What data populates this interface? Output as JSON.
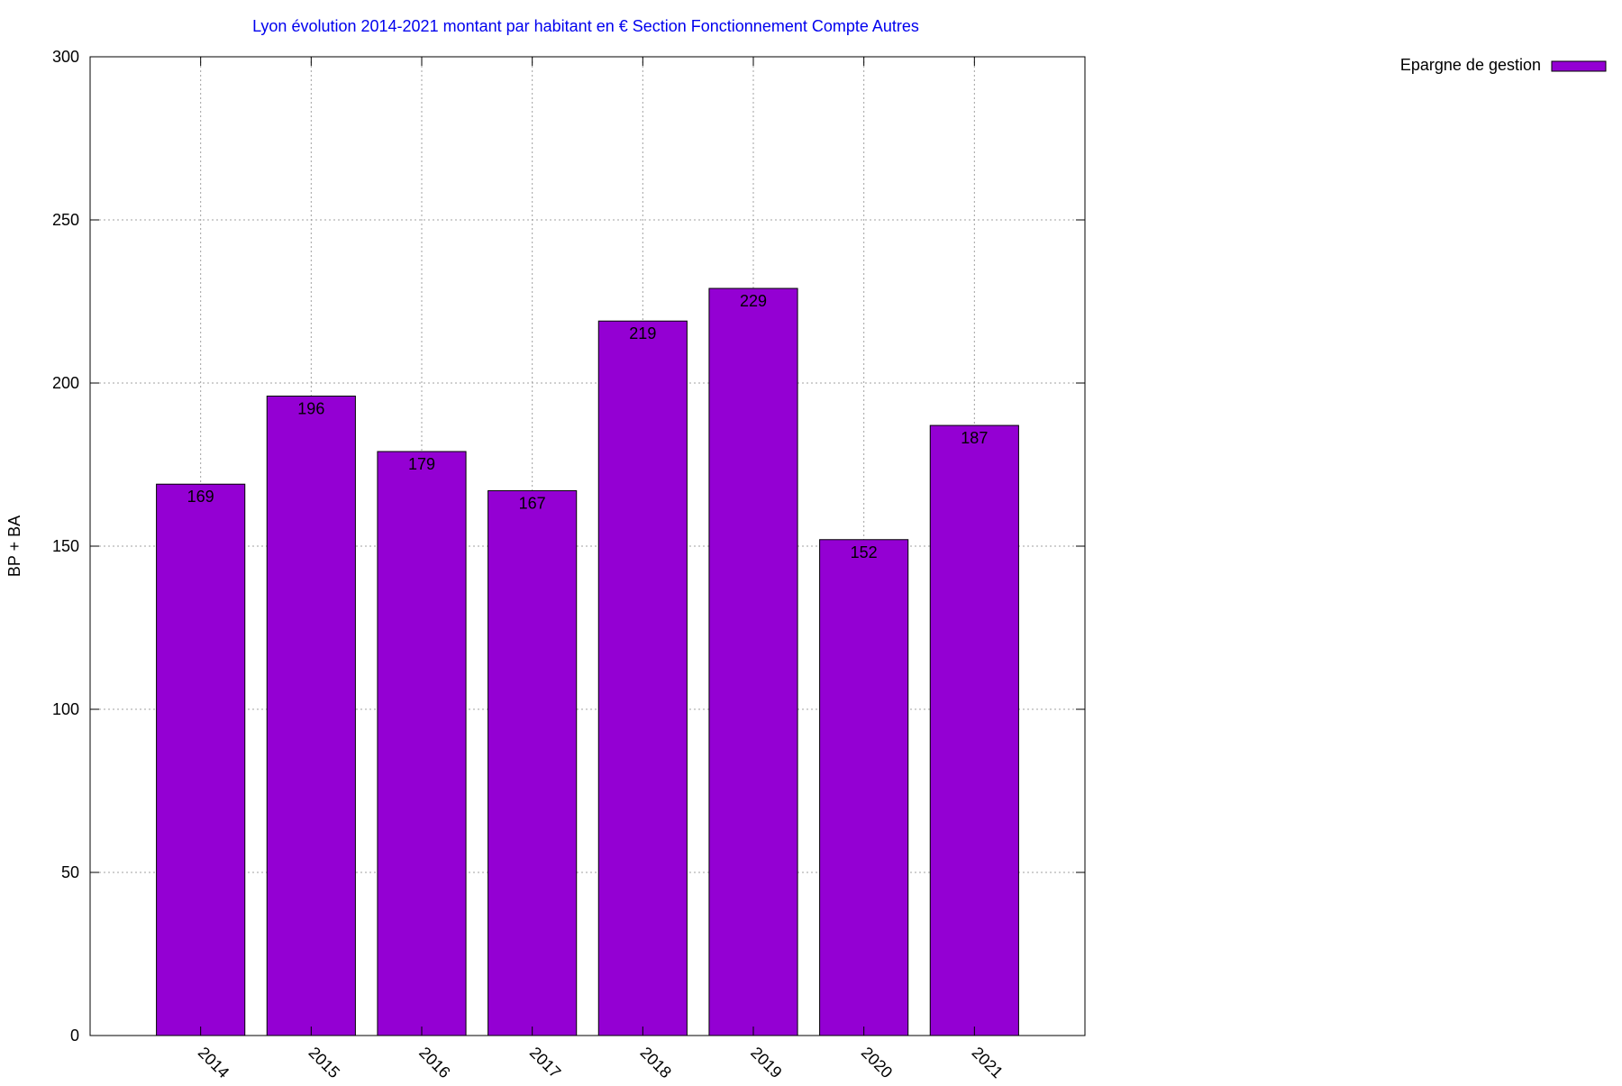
{
  "chart_data": {
    "type": "bar",
    "title": "Lyon évolution 2014-2021 montant par habitant en € Section Fonctionnement Compte Autres",
    "ylabel": "BP + BA",
    "xlabel": "",
    "categories": [
      "2014",
      "2015",
      "2016",
      "2017",
      "2018",
      "2019",
      "2020",
      "2021"
    ],
    "series": [
      {
        "name": "Epargne de gestion",
        "values": [
          169,
          196,
          179,
          167,
          219,
          229,
          152,
          187
        ],
        "color": "#9400d3"
      }
    ],
    "ylim": [
      0,
      300
    ],
    "yticks": [
      "0",
      "50",
      "100",
      "150",
      "200",
      "250",
      "300"
    ],
    "grid": true,
    "legend_position": "top-right",
    "title_color": "#0000ee"
  }
}
